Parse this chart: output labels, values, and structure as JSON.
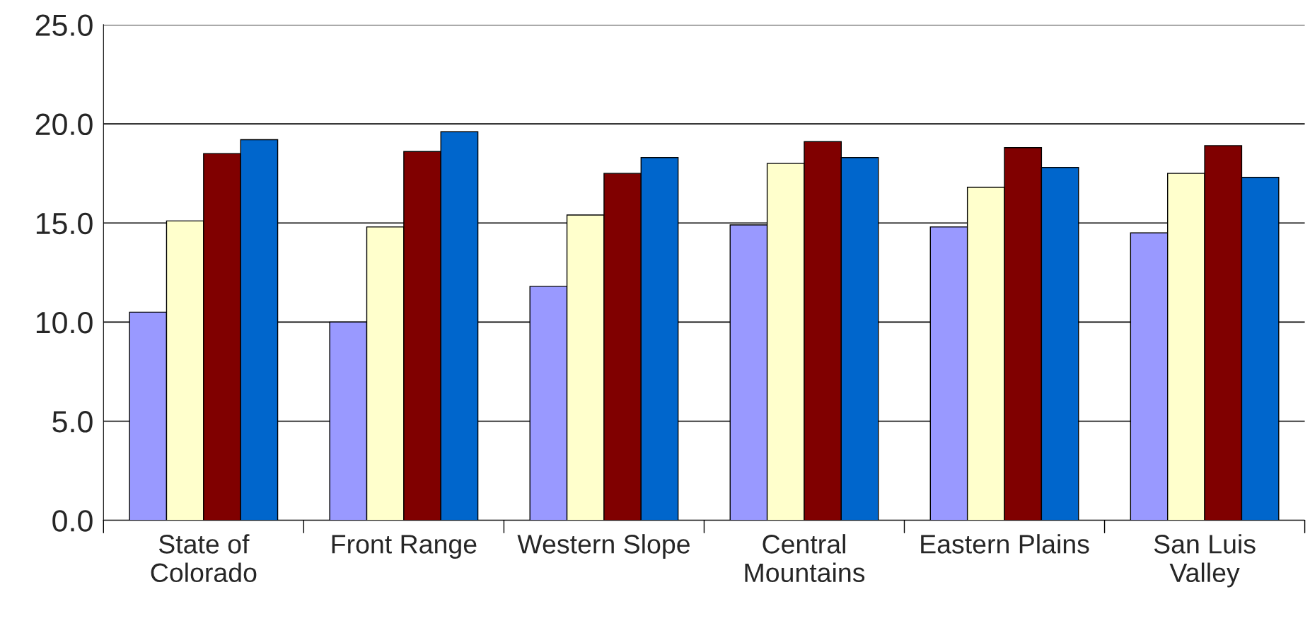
{
  "chart_data": {
    "type": "bar",
    "categories": [
      "State of\nColorado",
      "Front Range",
      "Western Slope",
      "Central\nMountains",
      "Eastern Plains",
      "San Luis\nValley"
    ],
    "series": [
      {
        "color": "#9999ff",
        "values": [
          10.5,
          10.0,
          11.8,
          14.9,
          14.8,
          14.5
        ]
      },
      {
        "color": "#ffffcc",
        "values": [
          15.1,
          14.8,
          15.4,
          18.0,
          16.8,
          17.5
        ]
      },
      {
        "color": "#800000",
        "values": [
          18.5,
          18.6,
          17.5,
          19.1,
          18.8,
          18.9
        ]
      },
      {
        "color": "#0066cc",
        "values": [
          19.2,
          19.6,
          18.3,
          18.3,
          17.8,
          17.3
        ]
      }
    ],
    "ylim": [
      0,
      25
    ],
    "yticks": [
      {
        "value": 0,
        "label": "0.0"
      },
      {
        "value": 5,
        "label": "5.0"
      },
      {
        "value": 10,
        "label": "10.0"
      },
      {
        "value": 15,
        "label": "15.0"
      },
      {
        "value": 20,
        "label": "20.0"
      },
      {
        "value": 25,
        "label": "25.0"
      }
    ],
    "grid": "y",
    "legend": false
  }
}
